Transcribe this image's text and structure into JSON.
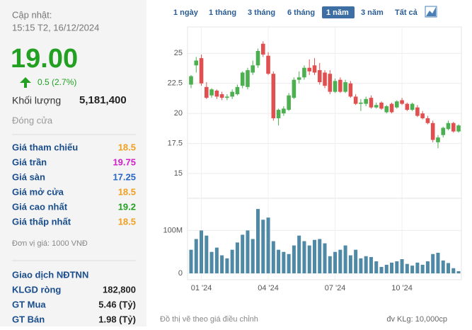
{
  "panel": {
    "update_label": "Cập nhật:",
    "update_time": "15:15 T2, 16/12/2024",
    "price": "19.00",
    "change": "0.5 (2.7%)",
    "volume_label": "Khối lượng",
    "volume": "5,181,400",
    "status": "Đóng cửa",
    "rows": [
      {
        "label": "Giá tham chiếu",
        "value": "18.5",
        "color": "#f0a020"
      },
      {
        "label": "Giá trần",
        "value": "19.75",
        "color": "#d020c8"
      },
      {
        "label": "Giá sàn",
        "value": "17.25",
        "color": "#2a66c4"
      },
      {
        "label": "Giá mở cửa",
        "value": "18.5",
        "color": "#f0a020"
      },
      {
        "label": "Giá cao nhất",
        "value": "19.2",
        "color": "#22a022"
      },
      {
        "label": "Giá thấp nhất",
        "value": "18.5",
        "color": "#f0a020"
      }
    ],
    "unit": "Đơn vị giá: 1000 VNĐ",
    "foreign_title": "Giao dịch NĐTNN",
    "foreign_rows": [
      {
        "label": "KLGD ròng",
        "value": "182,800"
      },
      {
        "label": "GT Mua",
        "value": "5.46 (Tỷ)"
      },
      {
        "label": "GT Bán",
        "value": "1.98 (Tỷ)"
      }
    ]
  },
  "tabs": {
    "items": [
      "1 ngày",
      "1 tháng",
      "3 tháng",
      "6 tháng",
      "1 năm",
      "3 năm",
      "Tất cả"
    ],
    "selected": 4
  },
  "footer": {
    "note": "Đồ thị vẽ theo giá điều chỉnh",
    "unit": "đv KLg: 10,000cp"
  },
  "chart_data": [
    {
      "type": "candlestick",
      "up_color": "#4caf50",
      "down_color": "#e05050",
      "ylim": [
        14,
        27.2
      ],
      "yticks": [
        15,
        17.5,
        20,
        22.5,
        25
      ],
      "grid": true,
      "categories": [
        null,
        null,
        "01 '24",
        null,
        null,
        null,
        null,
        null,
        null,
        null,
        null,
        null,
        null,
        null,
        null,
        "04 '24",
        null,
        null,
        null,
        null,
        null,
        null,
        null,
        null,
        null,
        null,
        null,
        null,
        "07 '24",
        null,
        null,
        null,
        null,
        null,
        null,
        null,
        null,
        null,
        null,
        null,
        null,
        "10 '24",
        null,
        null,
        null,
        null,
        null,
        null,
        null,
        null,
        null,
        null,
        null
      ],
      "open": [
        22.4,
        24.0,
        24.6,
        22.2,
        21.5,
        21.9,
        21.6,
        21.3,
        21.4,
        21.6,
        22.3,
        22.2,
        23.4,
        24.0,
        25.8,
        24.8,
        23.3,
        19.6,
        20.0,
        20.3,
        21.3,
        22.8,
        23.0,
        23.8,
        24.0,
        23.6,
        23.4,
        23.3,
        21.8,
        22.8,
        21.8,
        22.5,
        21.4,
        20.8,
        20.8,
        21.3,
        20.5,
        20.9,
        20.1,
        20.8,
        20.5,
        21.1,
        20.8,
        20.3,
        20.5,
        20.0,
        19.6,
        19.2,
        17.6,
        18.2,
        18.7,
        19.2,
        18.5
      ],
      "high": [
        23.2,
        24.7,
        24.9,
        22.6,
        22.1,
        22.0,
        21.8,
        21.6,
        22.0,
        22.4,
        23.5,
        23.8,
        24.4,
        25.4,
        26.0,
        25.1,
        23.5,
        20.4,
        20.6,
        21.7,
        23.0,
        23.5,
        24.0,
        24.5,
        24.6,
        24.2,
        23.6,
        23.6,
        22.9,
        23.0,
        22.8,
        22.7,
        21.6,
        21.2,
        21.4,
        21.5,
        20.9,
        21.0,
        20.7,
        20.9,
        21.1,
        21.3,
        20.9,
        20.9,
        20.7,
        20.2,
        19.8,
        19.4,
        18.2,
        18.9,
        19.4,
        19.3,
        19.1
      ],
      "low": [
        22.1,
        23.4,
        22.3,
        21.2,
        21.3,
        21.2,
        21.1,
        21.1,
        21.2,
        21.5,
        22.1,
        22.0,
        23.2,
        23.8,
        24.7,
        23.2,
        19.4,
        19.0,
        19.8,
        20.2,
        21.2,
        22.5,
        22.8,
        23.2,
        23.2,
        22.4,
        22.1,
        21.6,
        21.7,
        21.7,
        21.7,
        21.3,
        20.7,
        20.2,
        20.6,
        20.4,
        20.4,
        20.3,
        20.0,
        20.0,
        20.4,
        20.7,
        20.2,
        20.2,
        19.7,
        19.5,
        19.1,
        17.6,
        17.1,
        18.0,
        18.6,
        18.4,
        18.4
      ],
      "close": [
        23.1,
        24.4,
        22.5,
        21.3,
        22.0,
        21.4,
        21.3,
        21.4,
        21.8,
        22.2,
        23.4,
        23.6,
        24.0,
        25.2,
        24.9,
        23.3,
        19.6,
        20.3,
        20.4,
        21.5,
        22.8,
        23.0,
        23.8,
        23.5,
        23.4,
        22.6,
        22.3,
        21.8,
        22.7,
        21.8,
        22.6,
        21.4,
        20.8,
        20.9,
        21.2,
        20.5,
        20.7,
        20.4,
        20.6,
        20.1,
        21.0,
        20.8,
        20.3,
        20.8,
        19.8,
        19.6,
        19.2,
        17.8,
        18.0,
        18.8,
        19.2,
        18.5,
        19.0
      ]
    },
    {
      "type": "bar",
      "color": "#4f89a6",
      "ylim": [
        0,
        170
      ],
      "yticks": [
        0,
        {
          "value": 100,
          "label": "100M"
        }
      ],
      "grid": true,
      "values": [
        55,
        80,
        100,
        88,
        50,
        60,
        42,
        35,
        55,
        72,
        90,
        100,
        80,
        150,
        125,
        130,
        75,
        55,
        50,
        45,
        65,
        88,
        75,
        65,
        78,
        80,
        70,
        40,
        50,
        55,
        65,
        42,
        55,
        35,
        40,
        38,
        28,
        15,
        20,
        25,
        28,
        33,
        22,
        18,
        25,
        20,
        28,
        45,
        48,
        30,
        24,
        12,
        5
      ]
    }
  ]
}
